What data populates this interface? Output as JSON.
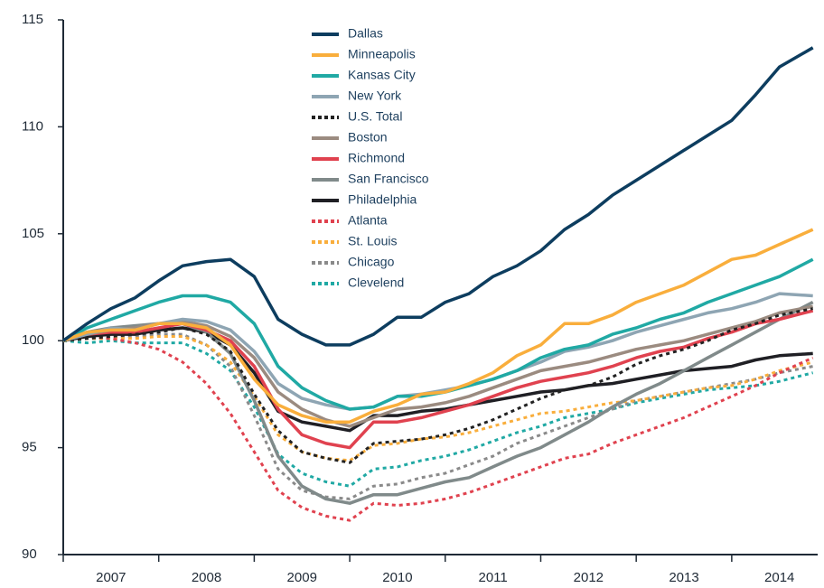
{
  "chart_data": {
    "type": "line",
    "x": [
      2007,
      2007.25,
      2007.5,
      2007.75,
      2008,
      2008.25,
      2008.5,
      2008.75,
      2009,
      2009.25,
      2009.5,
      2009.75,
      2010,
      2010.25,
      2010.5,
      2010.75,
      2011,
      2011.25,
      2011.5,
      2011.75,
      2012,
      2012.25,
      2012.5,
      2012.75,
      2013,
      2013.25,
      2013.5,
      2013.75,
      2014,
      2014.25,
      2014.5,
      2014.85
    ],
    "xlim": [
      2007,
      2014.9
    ],
    "xticks": [
      {
        "value": 2007.5,
        "label": "2007"
      },
      {
        "value": 2008.5,
        "label": "2008"
      },
      {
        "value": 2009.5,
        "label": "2009"
      },
      {
        "value": 2010.5,
        "label": "2010"
      },
      {
        "value": 2011.5,
        "label": "2011"
      },
      {
        "value": 2012.5,
        "label": "2012"
      },
      {
        "value": 2013.5,
        "label": "2013"
      },
      {
        "value": 2014.5,
        "label": "2014"
      }
    ],
    "ylim": [
      90,
      115
    ],
    "yticks": [
      90,
      95,
      100,
      105,
      110,
      115
    ],
    "grid": false,
    "legend": "top",
    "series": [
      {
        "name": "Dallas",
        "color": "#0d3d5f",
        "dashed": false,
        "values": [
          100,
          100.8,
          101.5,
          102.0,
          102.8,
          103.5,
          103.7,
          103.8,
          103.0,
          101.0,
          100.3,
          99.8,
          99.8,
          100.3,
          101.1,
          101.1,
          101.8,
          102.2,
          103.0,
          103.5,
          104.2,
          105.2,
          105.9,
          106.8,
          107.5,
          108.2,
          108.9,
          109.6,
          110.3,
          111.5,
          112.8,
          113.7
        ]
      },
      {
        "name": "Minneapolis",
        "color": "#f9ae3c",
        "dashed": false,
        "values": [
          100,
          100.4,
          100.5,
          100.5,
          100.8,
          100.8,
          100.6,
          99.8,
          98.2,
          97.0,
          96.5,
          96.2,
          96.2,
          96.7,
          97.0,
          97.5,
          97.6,
          98.0,
          98.5,
          99.3,
          99.8,
          100.8,
          100.8,
          101.2,
          101.8,
          102.2,
          102.6,
          103.2,
          103.8,
          104.0,
          104.5,
          105.2
        ]
      },
      {
        "name": "Kansas City",
        "color": "#20a9a4",
        "dashed": false,
        "values": [
          100,
          100.6,
          101.0,
          101.4,
          101.8,
          102.1,
          102.1,
          101.8,
          100.8,
          98.8,
          97.8,
          97.2,
          96.8,
          96.9,
          97.4,
          97.4,
          97.6,
          97.9,
          98.2,
          98.6,
          99.2,
          99.6,
          99.8,
          100.3,
          100.6,
          101.0,
          101.3,
          101.8,
          102.2,
          102.6,
          103.0,
          103.8
        ]
      },
      {
        "name": "New York",
        "color": "#8ea5b3",
        "dashed": false,
        "values": [
          100,
          100.3,
          100.6,
          100.5,
          100.8,
          101.0,
          100.9,
          100.5,
          99.5,
          98.0,
          97.3,
          97.0,
          96.8,
          96.9,
          97.4,
          97.5,
          97.7,
          97.9,
          98.2,
          98.6,
          99.0,
          99.5,
          99.7,
          100.0,
          100.4,
          100.7,
          101.0,
          101.3,
          101.5,
          101.8,
          102.2,
          102.1
        ]
      },
      {
        "name": "U.S. Total",
        "color": "#222222",
        "dashed": true,
        "values": [
          100,
          100.1,
          100.2,
          100.3,
          100.4,
          100.6,
          100.3,
          99.5,
          97.5,
          95.8,
          94.8,
          94.5,
          94.3,
          95.2,
          95.3,
          95.4,
          95.6,
          95.9,
          96.3,
          96.8,
          97.3,
          97.7,
          97.9,
          98.3,
          98.9,
          99.3,
          99.6,
          100.0,
          100.5,
          100.8,
          101.2,
          101.5
        ]
      },
      {
        "name": "Boston",
        "color": "#9b8b80",
        "dashed": false,
        "values": [
          100,
          100.3,
          100.5,
          100.6,
          100.8,
          100.9,
          100.7,
          100.2,
          99.2,
          97.6,
          96.8,
          96.3,
          96.0,
          96.4,
          96.8,
          96.9,
          97.1,
          97.4,
          97.8,
          98.2,
          98.6,
          98.8,
          99.0,
          99.3,
          99.6,
          99.8,
          100.0,
          100.3,
          100.6,
          100.9,
          101.3,
          101.6
        ]
      },
      {
        "name": "Richmond",
        "color": "#e0424f",
        "dashed": false,
        "values": [
          100,
          100.3,
          100.4,
          100.4,
          100.6,
          100.8,
          100.5,
          100.0,
          98.8,
          96.8,
          95.6,
          95.2,
          95.0,
          96.2,
          96.2,
          96.4,
          96.7,
          97.0,
          97.4,
          97.8,
          98.1,
          98.3,
          98.5,
          98.8,
          99.2,
          99.5,
          99.7,
          100.1,
          100.4,
          100.8,
          101.0,
          101.4
        ]
      },
      {
        "name": "San Francisco",
        "color": "#808a8a",
        "dashed": false,
        "values": [
          100,
          100.4,
          100.6,
          100.7,
          100.8,
          100.8,
          100.4,
          99.4,
          97.2,
          94.6,
          93.2,
          92.6,
          92.4,
          92.8,
          92.8,
          93.1,
          93.4,
          93.6,
          94.1,
          94.6,
          95.0,
          95.6,
          96.2,
          96.9,
          97.5,
          98.0,
          98.6,
          99.2,
          99.8,
          100.4,
          101.0,
          101.8
        ]
      },
      {
        "name": "Philadelphia",
        "color": "#1f1f24",
        "dashed": false,
        "values": [
          100,
          100.2,
          100.3,
          100.3,
          100.5,
          100.6,
          100.4,
          99.8,
          98.5,
          96.7,
          96.2,
          96.0,
          95.8,
          96.5,
          96.5,
          96.7,
          96.8,
          97.0,
          97.2,
          97.4,
          97.6,
          97.7,
          97.9,
          98.0,
          98.2,
          98.4,
          98.6,
          98.7,
          98.8,
          99.1,
          99.3,
          99.4
        ]
      },
      {
        "name": "Atlanta",
        "color": "#e0424f",
        "dashed": true,
        "values": [
          100,
          100.2,
          100.1,
          99.9,
          99.6,
          99.0,
          98.0,
          96.6,
          94.8,
          93.0,
          92.2,
          91.8,
          91.6,
          92.4,
          92.3,
          92.4,
          92.6,
          92.9,
          93.3,
          93.7,
          94.1,
          94.5,
          94.7,
          95.2,
          95.6,
          96.0,
          96.4,
          96.9,
          97.4,
          97.9,
          98.5,
          99.2
        ]
      },
      {
        "name": "St. Louis",
        "color": "#f9ae3c",
        "dashed": true,
        "values": [
          100,
          100.1,
          100.1,
          100.1,
          100.2,
          100.2,
          99.8,
          99.0,
          97.4,
          95.6,
          94.8,
          94.5,
          94.4,
          95.1,
          95.2,
          95.4,
          95.5,
          95.7,
          96.0,
          96.3,
          96.6,
          96.7,
          96.9,
          97.1,
          97.2,
          97.4,
          97.6,
          97.8,
          97.9,
          98.2,
          98.6,
          99.0
        ]
      },
      {
        "name": "Chicago",
        "color": "#8a8a8a",
        "dashed": true,
        "values": [
          100,
          100.1,
          100.2,
          100.2,
          100.3,
          100.3,
          99.8,
          98.8,
          96.5,
          94.0,
          93.0,
          92.7,
          92.6,
          93.2,
          93.3,
          93.6,
          93.8,
          94.2,
          94.6,
          95.2,
          95.6,
          96.0,
          96.4,
          96.8,
          97.2,
          97.4,
          97.6,
          97.8,
          98.0,
          98.2,
          98.5,
          98.8
        ]
      },
      {
        "name": "Clevelend",
        "color": "#20a9a4",
        "dashed": true,
        "values": [
          100,
          99.9,
          100.0,
          99.9,
          99.9,
          99.9,
          99.4,
          98.6,
          96.9,
          94.7,
          93.8,
          93.4,
          93.2,
          94.0,
          94.1,
          94.4,
          94.6,
          94.9,
          95.3,
          95.7,
          96.0,
          96.4,
          96.6,
          96.8,
          97.1,
          97.3,
          97.5,
          97.7,
          97.8,
          97.9,
          98.1,
          98.5
        ]
      }
    ]
  }
}
